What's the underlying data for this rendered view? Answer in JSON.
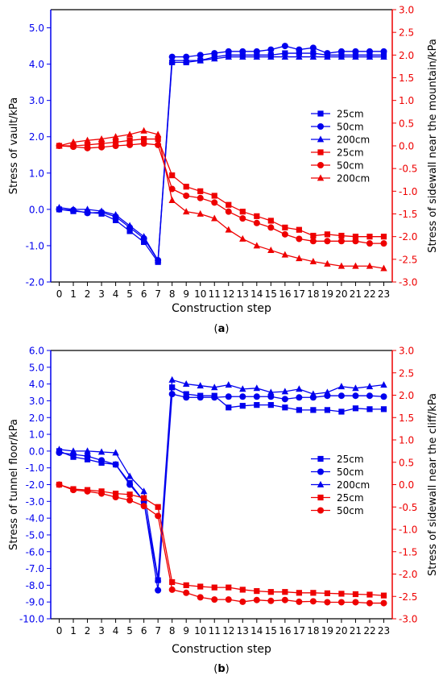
{
  "chart_data": [
    {
      "type": "line",
      "panel_label": "a",
      "xlabel": "Construction step",
      "ylabel": "Stress of vault/kPa",
      "y2label": "Stress of sidewall near the mountain/kPa",
      "x": [
        0,
        1,
        2,
        3,
        4,
        5,
        6,
        7,
        8,
        9,
        10,
        11,
        12,
        13,
        14,
        15,
        16,
        17,
        18,
        19,
        20,
        21,
        22,
        23
      ],
      "xlim": [
        -0.6,
        23.6
      ],
      "ylim": [
        -2.0,
        5.5
      ],
      "y2lim": [
        -3.0,
        3.0
      ],
      "yticks": [
        -2.0,
        -1.0,
        0.0,
        1.0,
        2.0,
        3.0,
        4.0,
        5.0
      ],
      "y2ticks": [
        -3.0,
        -2.5,
        -2.0,
        -1.5,
        -1.0,
        -0.5,
        0.0,
        0.5,
        1.0,
        1.5,
        2.0,
        2.5,
        3.0
      ],
      "legend_position": "right-center",
      "colors": {
        "left_axis": "#0000ee",
        "right_axis": "#ee0000"
      },
      "series": [
        {
          "name": "25cm",
          "axis": "left",
          "marker": "square",
          "values": [
            0.0,
            -0.05,
            -0.08,
            -0.12,
            -0.3,
            -0.6,
            -0.9,
            -1.45,
            4.05,
            4.05,
            4.1,
            4.2,
            4.25,
            4.25,
            4.25,
            4.25,
            4.3,
            4.3,
            4.3,
            4.25,
            4.25,
            4.25,
            4.25,
            4.25
          ]
        },
        {
          "name": "50cm",
          "axis": "left",
          "marker": "circle",
          "values": [
            0.0,
            -0.02,
            -0.1,
            -0.08,
            -0.2,
            -0.5,
            -0.8,
            -1.4,
            4.2,
            4.2,
            4.25,
            4.3,
            4.35,
            4.35,
            4.35,
            4.4,
            4.5,
            4.4,
            4.45,
            4.3,
            4.35,
            4.35,
            4.35,
            4.35
          ]
        },
        {
          "name": "200cm",
          "axis": "left",
          "marker": "triangle",
          "values": [
            0.05,
            0.0,
            0.0,
            -0.05,
            -0.15,
            -0.45,
            -0.75,
            -1.4,
            4.1,
            4.1,
            4.1,
            4.15,
            4.2,
            4.2,
            4.2,
            4.2,
            4.2,
            4.2,
            4.2,
            4.2,
            4.2,
            4.2,
            4.2,
            4.2
          ]
        },
        {
          "name": "25cm",
          "axis": "right",
          "marker": "square",
          "values": [
            0.0,
            0.0,
            0.02,
            0.05,
            0.08,
            0.12,
            0.15,
            0.15,
            -0.65,
            -0.9,
            -1.0,
            -1.1,
            -1.3,
            -1.45,
            -1.55,
            -1.65,
            -1.8,
            -1.85,
            -1.98,
            -1.95,
            -1.98,
            -2.0,
            -2.0,
            -2.0
          ]
        },
        {
          "name": "50cm",
          "axis": "right",
          "marker": "circle",
          "values": [
            0.0,
            -0.02,
            -0.05,
            -0.03,
            0.0,
            0.02,
            0.05,
            0.02,
            -0.95,
            -1.1,
            -1.15,
            -1.25,
            -1.45,
            -1.6,
            -1.7,
            -1.8,
            -1.95,
            -2.05,
            -2.1,
            -2.1,
            -2.1,
            -2.1,
            -2.15,
            -2.15
          ]
        },
        {
          "name": "200cm",
          "axis": "right",
          "marker": "triangle",
          "values": [
            0.0,
            0.08,
            0.12,
            0.15,
            0.2,
            0.25,
            0.33,
            0.25,
            -1.2,
            -1.45,
            -1.5,
            -1.6,
            -1.85,
            -2.05,
            -2.2,
            -2.3,
            -2.4,
            -2.48,
            -2.55,
            -2.6,
            -2.65,
            -2.65,
            -2.65,
            -2.7
          ]
        }
      ]
    },
    {
      "type": "line",
      "panel_label": "b",
      "xlabel": "Construction step",
      "ylabel": "Stress of tunnel floor/kPa",
      "y2label": "Stress of sidewall near the cliff/kPa",
      "x": [
        0,
        1,
        2,
        3,
        4,
        5,
        6,
        7,
        8,
        9,
        10,
        11,
        12,
        13,
        14,
        15,
        16,
        17,
        18,
        19,
        20,
        21,
        22,
        23
      ],
      "xlim": [
        -0.6,
        23.6
      ],
      "ylim": [
        -10.0,
        6.0
      ],
      "y2lim": [
        -3.0,
        3.0
      ],
      "yticks": [
        -10.0,
        -9.0,
        -8.0,
        -7.0,
        -6.0,
        -5.0,
        -4.0,
        -3.0,
        -2.0,
        -1.0,
        0.0,
        1.0,
        2.0,
        3.0,
        4.0,
        5.0,
        6.0
      ],
      "y2ticks": [
        -3.0,
        -2.5,
        -2.0,
        -1.5,
        -1.0,
        -0.5,
        0.0,
        0.5,
        1.0,
        1.5,
        2.0,
        2.5,
        3.0
      ],
      "legend_position": "right-center",
      "colors": {
        "left_axis": "#0000ee",
        "right_axis": "#ee0000"
      },
      "series": [
        {
          "name": "25cm",
          "axis": "left",
          "marker": "square",
          "values": [
            0.0,
            -0.35,
            -0.5,
            -0.7,
            -0.8,
            -1.9,
            -3.0,
            -7.7,
            3.8,
            3.4,
            3.3,
            3.3,
            2.6,
            2.7,
            2.75,
            2.75,
            2.6,
            2.45,
            2.45,
            2.45,
            2.35,
            2.55,
            2.5,
            2.5
          ]
        },
        {
          "name": "50cm",
          "axis": "left",
          "marker": "circle",
          "values": [
            -0.1,
            -0.2,
            -0.3,
            -0.55,
            -0.8,
            -2.0,
            -3.0,
            -8.3,
            3.4,
            3.2,
            3.2,
            3.2,
            3.25,
            3.25,
            3.25,
            3.25,
            3.1,
            3.2,
            3.2,
            3.3,
            3.3,
            3.3,
            3.3,
            3.25
          ]
        },
        {
          "name": "200cm",
          "axis": "left",
          "marker": "triangle",
          "values": [
            0.1,
            0.0,
            0.0,
            -0.05,
            -0.1,
            -1.5,
            -2.4,
            -7.6,
            4.25,
            4.0,
            3.9,
            3.8,
            3.95,
            3.7,
            3.75,
            3.5,
            3.55,
            3.7,
            3.4,
            3.5,
            3.85,
            3.75,
            3.85,
            3.95
          ]
        },
        {
          "name": "25cm",
          "axis": "right",
          "marker": "square",
          "values": [
            0.0,
            -0.1,
            -0.12,
            -0.15,
            -0.2,
            -0.22,
            -0.3,
            -0.5,
            -2.18,
            -2.25,
            -2.28,
            -2.3,
            -2.3,
            -2.35,
            -2.38,
            -2.4,
            -2.4,
            -2.42,
            -2.42,
            -2.43,
            -2.44,
            -2.45,
            -2.46,
            -2.48
          ]
        },
        {
          "name": "50cm",
          "axis": "right",
          "marker": "circle",
          "values": [
            0.0,
            -0.12,
            -0.15,
            -0.2,
            -0.28,
            -0.35,
            -0.48,
            -0.7,
            -2.35,
            -2.42,
            -2.52,
            -2.57,
            -2.57,
            -2.62,
            -2.58,
            -2.6,
            -2.58,
            -2.62,
            -2.61,
            -2.63,
            -2.63,
            -2.63,
            -2.65,
            -2.65
          ]
        }
      ]
    }
  ]
}
